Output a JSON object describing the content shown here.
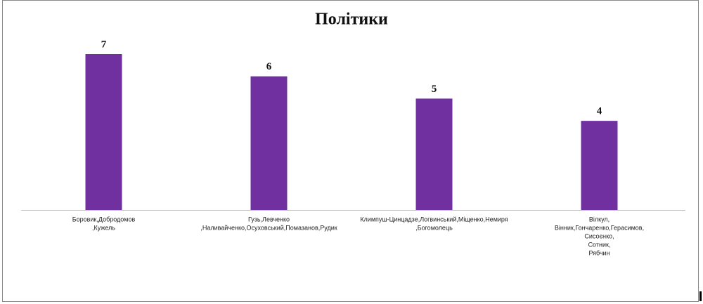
{
  "chart_data": {
    "type": "bar",
    "title": "Політики",
    "categories": [
      [
        "Боровик,Добродомов",
        ",Кужель"
      ],
      [
        "Гузь,Левченко",
        ",Наливайченко,Осуховський,Помазанов,Рудик"
      ],
      [
        "Климпуш-Цинцадзе,Логвинський,Міщенко,Немиря",
        ",Богомолець"
      ],
      [
        "Вілкул,",
        "Вінник,Гончаренко,Герасимов,",
        "Сисоєнко,",
        "Сотник,",
        "Рябчин"
      ]
    ],
    "values": [
      7,
      6,
      5,
      4
    ],
    "color": "#7030a0"
  }
}
